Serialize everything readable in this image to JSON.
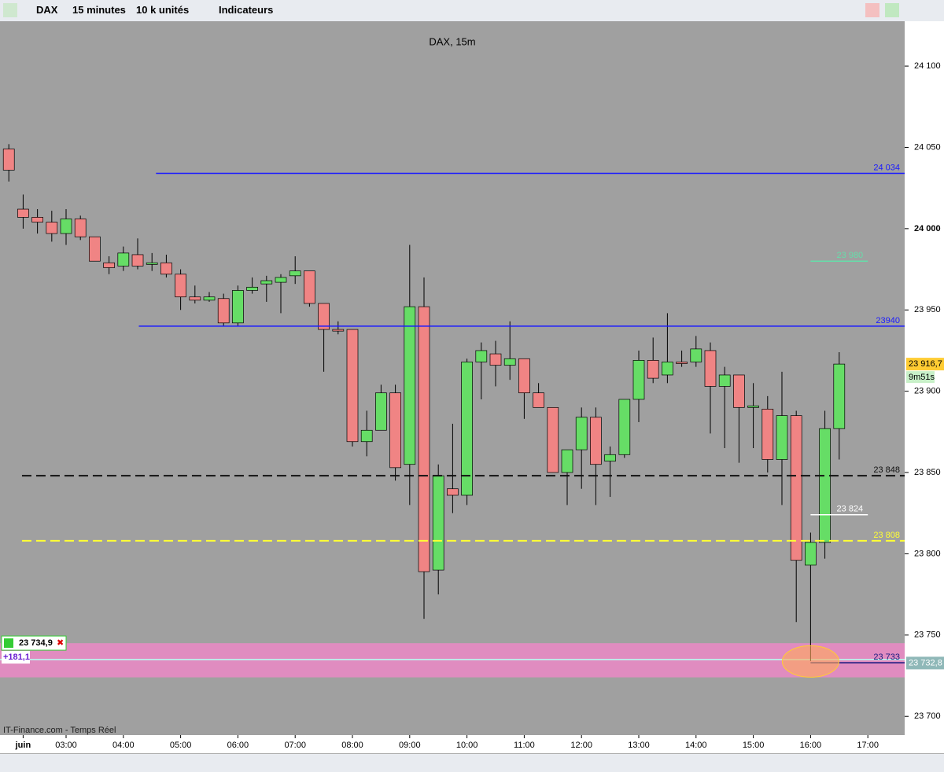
{
  "toolbar": {
    "instrument": "DAX",
    "timeframe": "15 minutes",
    "size": "10 k unités",
    "indicators": "Indicateurs"
  },
  "chart_data": {
    "type": "candlestick",
    "title": "DAX, 15m",
    "source": "IT-Finance.com - Temps Réel",
    "x": [
      2,
      2.25,
      2.5,
      2.75,
      3,
      3.25,
      3.5,
      3.75,
      4,
      4.25,
      4.5,
      4.75,
      5,
      5.25,
      5.5,
      5.75,
      6,
      6.25,
      6.5,
      6.75,
      7,
      7.25,
      7.5,
      7.75,
      8,
      8.25,
      8.5,
      8.75,
      9,
      9.25,
      9.5,
      9.75,
      10,
      10.25,
      10.5,
      10.75,
      11,
      11.25,
      11.5,
      11.75,
      12,
      12.25,
      12.5,
      12.75,
      13,
      13.25,
      13.5,
      13.75,
      14,
      14.25,
      14.5,
      14.75,
      15,
      15.25,
      15.5,
      15.75,
      16,
      16.25,
      16.5
    ],
    "open": [
      24049,
      24012,
      24007,
      24004,
      23997,
      24006,
      23995,
      23979,
      23977,
      23984,
      23978,
      23979,
      23972,
      23958,
      23956,
      23957,
      23942,
      23962,
      23966,
      23967,
      23971,
      23974,
      23954,
      23938,
      23938,
      23869,
      23876,
      23899,
      23855,
      23952,
      23790,
      23840,
      23836,
      23918,
      23923,
      23916,
      23920,
      23899,
      23890,
      23850,
      23864,
      23884,
      23857,
      23861,
      23895,
      23919,
      23910,
      23918,
      23918,
      23925,
      23903,
      23910,
      23890,
      23889,
      23858,
      23885,
      23793,
      23807,
      23877
    ],
    "high": [
      24052,
      24021,
      24012,
      24011,
      24012,
      24008,
      23995,
      23983,
      23989,
      23994,
      23985,
      23984,
      23975,
      23965,
      23961,
      23960,
      23965,
      23970,
      23971,
      23972,
      23983,
      23974,
      23954,
      23943,
      23938,
      23888,
      23904,
      23904,
      23990,
      23970,
      23855,
      23880,
      23920,
      23930,
      23931,
      23943,
      23920,
      23905,
      23890,
      23864,
      23890,
      23890,
      23866,
      23895,
      23925,
      23933,
      23948,
      23925,
      23934,
      23930,
      23915,
      23910,
      23905,
      23897,
      23912,
      23888,
      23813,
      23888,
      23924
    ],
    "low": [
      24029,
      24000,
      23997,
      23992,
      23990,
      23993,
      23980,
      23972,
      23974,
      23975,
      23974,
      23970,
      23950,
      23954,
      23955,
      23940,
      23940,
      23960,
      23955,
      23948,
      23966,
      23952,
      23912,
      23935,
      23866,
      23860,
      23876,
      23845,
      23830,
      23760,
      23775,
      23825,
      23830,
      23895,
      23903,
      23907,
      23883,
      23890,
      23850,
      23830,
      23840,
      23830,
      23835,
      23859,
      23881,
      23905,
      23905,
      23915,
      23915,
      23874,
      23865,
      23856,
      23865,
      23850,
      23830,
      23758,
      23734,
      23797,
      23858
    ],
    "close": [
      24036,
      24007,
      24004,
      23997,
      24006,
      23995,
      23980,
      23976,
      23985,
      23977,
      23979,
      23972,
      23958,
      23956,
      23958,
      23942,
      23962,
      23964,
      23968,
      23970,
      23974,
      23954,
      23938,
      23937,
      23869,
      23876,
      23899,
      23853,
      23952,
      23789,
      23848,
      23836,
      23918,
      23925,
      23916,
      23920,
      23899,
      23890,
      23850,
      23864,
      23884,
      23855,
      23861,
      23895,
      23919,
      23908,
      23918,
      23917,
      23926,
      23903,
      23910,
      23890,
      23891,
      23858,
      23885,
      23796,
      23807,
      23877,
      23916.7
    ],
    "up_color": "#66dd66",
    "down_color": "#f08484",
    "xlim": [
      1.846,
      17.643
    ],
    "ylim": [
      23688.5,
      24127.6
    ],
    "xticks": [
      {
        "value": 2.25,
        "label": "juin"
      },
      {
        "value": 3,
        "label": "03:00"
      },
      {
        "value": 4,
        "label": "04:00"
      },
      {
        "value": 5,
        "label": "05:00"
      },
      {
        "value": 6,
        "label": "06:00"
      },
      {
        "value": 7,
        "label": "07:00"
      },
      {
        "value": 8,
        "label": "08:00"
      },
      {
        "value": 9,
        "label": "09:00"
      },
      {
        "value": 10,
        "label": "10:00"
      },
      {
        "value": 11,
        "label": "11:00"
      },
      {
        "value": 12,
        "label": "12:00"
      },
      {
        "value": 13,
        "label": "13:00"
      },
      {
        "value": 14,
        "label": "14:00"
      },
      {
        "value": 15,
        "label": "15:00"
      },
      {
        "value": 16,
        "label": "16:00"
      },
      {
        "value": 17,
        "label": "17:00"
      }
    ],
    "yticks": [
      {
        "value": 23700,
        "label": "23 700"
      },
      {
        "value": 23750,
        "label": "23 750"
      },
      {
        "value": 23800,
        "label": "23 800"
      },
      {
        "value": 23850,
        "label": "23 850"
      },
      {
        "value": 23900,
        "label": "23 900"
      },
      {
        "value": 23950,
        "label": "23 950"
      },
      {
        "value": 24000,
        "label": "24 000"
      },
      {
        "value": 24050,
        "label": "24 050"
      },
      {
        "value": 24100,
        "label": "24 100"
      }
    ],
    "levels": [
      {
        "value": 24034,
        "label": "24 034",
        "color": "#1a1aff",
        "dashed": false,
        "span": [
          4.57,
          17.643
        ]
      },
      {
        "value": 23980,
        "label": "23 980",
        "color": "#66ddaa",
        "dashed": false,
        "span": [
          16,
          17
        ]
      },
      {
        "value": 23940,
        "label": "23940",
        "color": "#1a1aff",
        "dashed": false,
        "span": [
          4.27,
          17.643
        ]
      },
      {
        "value": 23848,
        "label": "23 848",
        "color": "#111111",
        "dashed": true,
        "span": [
          2.23,
          17.643
        ]
      },
      {
        "value": 23824,
        "label": "23 824",
        "color": "#ffffff",
        "dashed": false,
        "span": [
          16,
          17
        ]
      },
      {
        "value": 23808,
        "label": "23 808",
        "color": "#ffff33",
        "dashed": true,
        "span": [
          2.23,
          17.643
        ]
      },
      {
        "value": 23733,
        "label": "23 733",
        "color": "#1a1a80",
        "dashed": false,
        "span": [
          16,
          17.643
        ]
      }
    ],
    "zone": [
      23724,
      23745
    ],
    "last_price": {
      "value": 23916.7,
      "label": "23 916,7",
      "countdown": "9m51s"
    },
    "bid_price": {
      "value": 23732.8,
      "label": "23 732,8"
    },
    "position": {
      "value": 23734.9,
      "label": "23 734,9",
      "pnl": "+181,1"
    }
  }
}
